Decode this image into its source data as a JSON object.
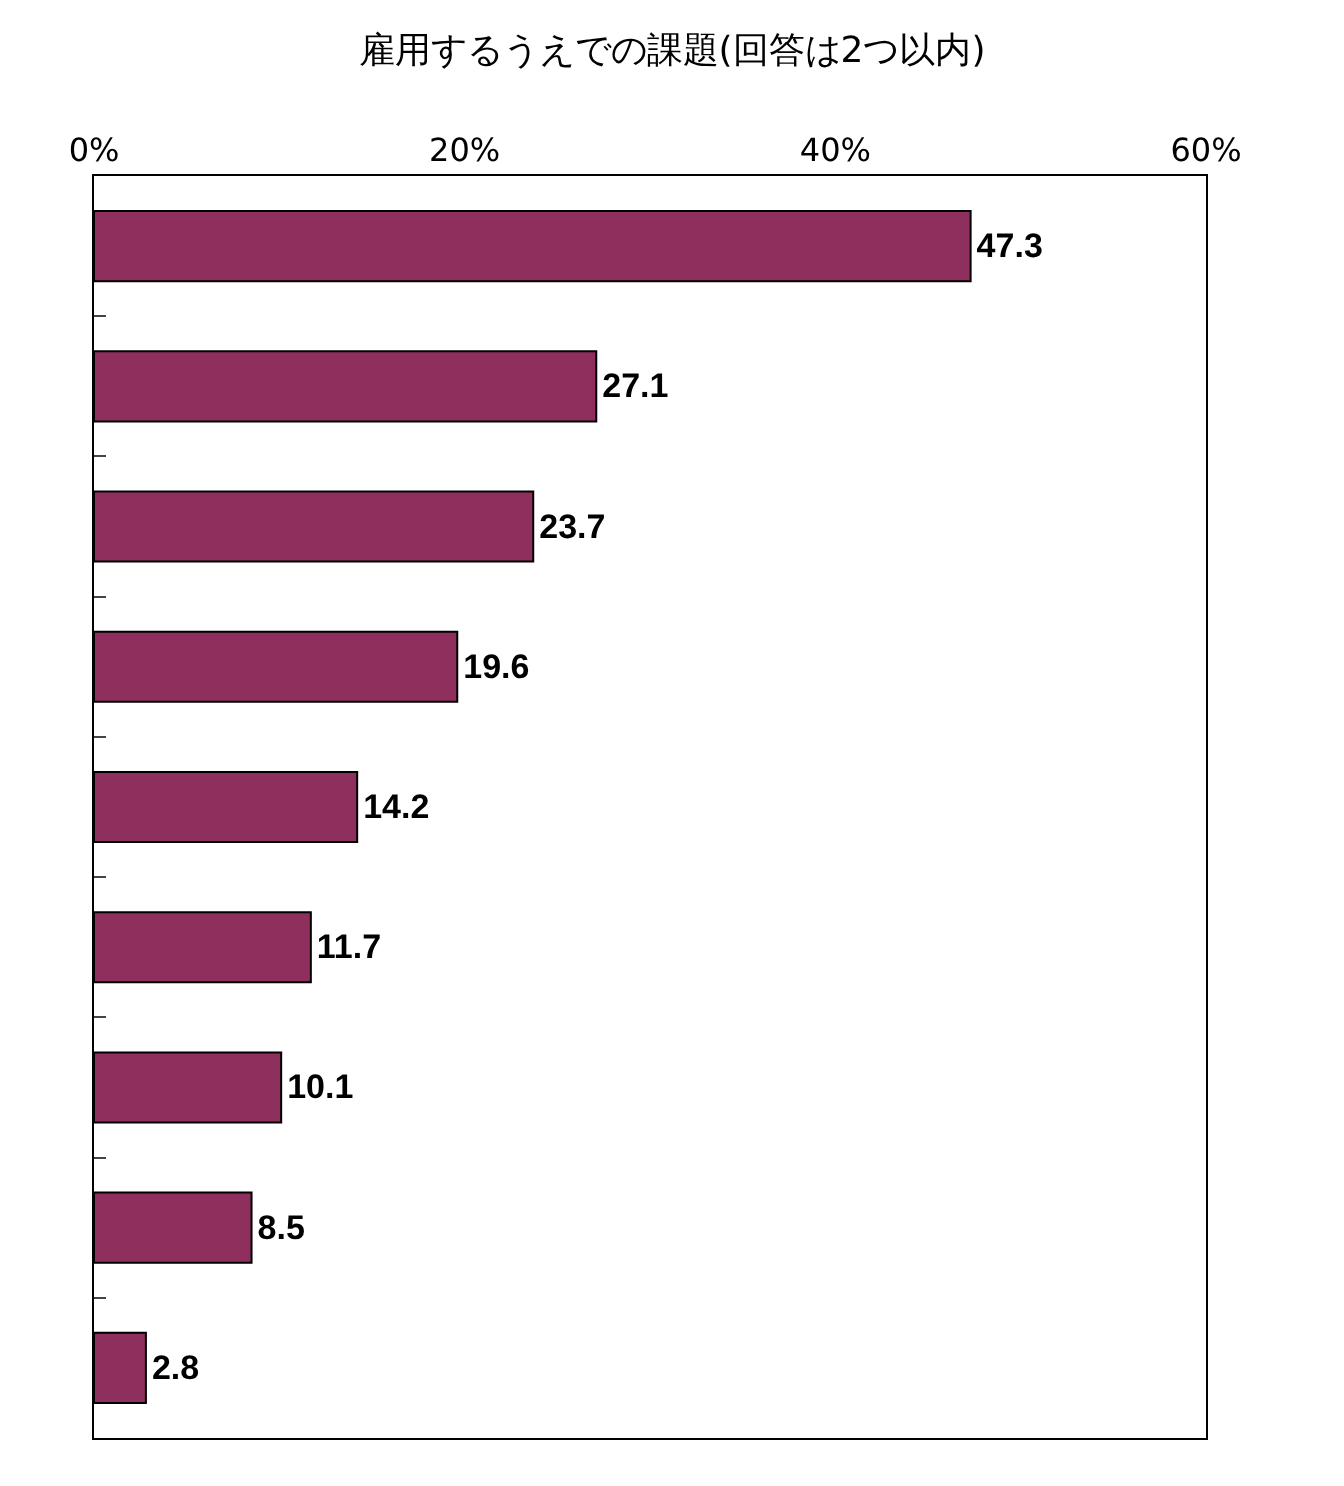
{
  "chart_data": {
    "type": "bar",
    "orientation": "horizontal",
    "title": "雇用するうえでの課題(回答は2つ以内)",
    "categories": [
      null,
      null,
      null,
      null,
      null,
      null,
      null,
      null,
      null
    ],
    "values": [
      47.3,
      27.1,
      23.7,
      19.6,
      14.2,
      11.7,
      10.1,
      8.5,
      2.8
    ],
    "color": "#8e2f5e",
    "xlim": [
      0,
      60
    ],
    "xticks": [
      {
        "value": 0,
        "label": "0%"
      },
      {
        "value": 20,
        "label": "20%"
      },
      {
        "value": 40,
        "label": "40%"
      },
      {
        "value": 60,
        "label": "60%"
      }
    ],
    "data_labels": true,
    "grid": false,
    "legend": false,
    "tick_labels": "x"
  }
}
